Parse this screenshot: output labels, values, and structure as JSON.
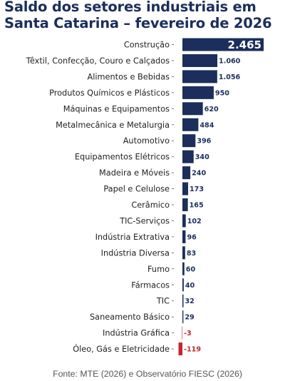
{
  "title": "Saldo dos setores industriais em Santa Catarina – fevereiro de 2026",
  "source": "Fonte: MTE (2026) e Observatório FIESC (2026)",
  "colors": {
    "positive": "#1b2e5c",
    "negative": "#c0282d",
    "positive_label": "#1b2e5c",
    "negative_label": "#c0282d"
  },
  "chart_data": {
    "type": "bar",
    "orientation": "horizontal",
    "title": "Saldo dos setores industriais em Santa Catarina – fevereiro de 2026",
    "categories": [
      "Construção",
      "Têxtil, Confecção, Couro e Calçados",
      "Alimentos e Bebidas",
      "Produtos Químicos e Plásticos",
      "Máquinas e Equipamentos",
      "Metalmecânica e Metalurgia",
      "Automotivo",
      "Equipamentos Elétricos",
      "Madeira e Móveis",
      "Papel e Celulose",
      "Cerâmico",
      "TIC-Serviços",
      "Indústria Extrativa",
      "Indústria Diversa",
      "Fumo",
      "Fármacos",
      "TIC",
      "Saneamento Básico",
      "Indústria Gráfica",
      "Óleo, Gás e Eletricidade"
    ],
    "values": [
      2465,
      1060,
      1056,
      950,
      620,
      484,
      396,
      340,
      240,
      173,
      165,
      102,
      96,
      83,
      60,
      40,
      32,
      29,
      -3,
      -119
    ],
    "labels": [
      "2.465",
      "1.060",
      "1.056",
      "950",
      "620",
      "484",
      "396",
      "340",
      "240",
      "173",
      "165",
      "102",
      "96",
      "83",
      "60",
      "40",
      "32",
      "29",
      "-3",
      "-119"
    ],
    "grid": false,
    "legend": "none"
  }
}
